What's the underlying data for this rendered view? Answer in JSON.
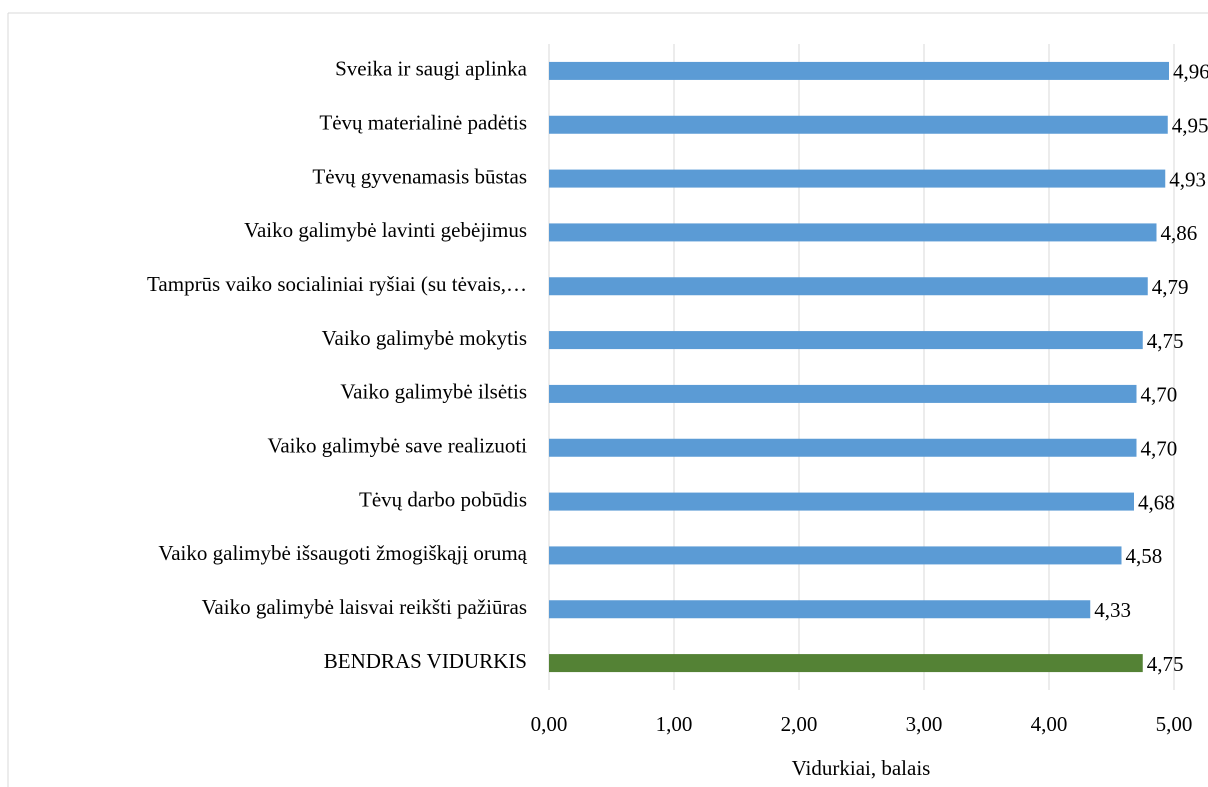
{
  "chart_data": {
    "type": "bar",
    "orientation": "horizontal",
    "x_label": "Vidurkiai, balais",
    "categories": [
      "Sveika ir saugi aplinka",
      "Tėvų materialinė padėtis",
      "Tėvų gyvenamasis būstas",
      "Vaiko galimybė lavinti gebėjimus",
      "Tamprūs vaiko socialiniai ryšiai (su tėvais,…",
      "Vaiko galimybė mokytis",
      "Vaiko galimybė ilsėtis",
      "Vaiko galimybė save realizuoti",
      "Tėvų darbo pobūdis",
      "Vaiko galimybė išsaugoti žmogiškąjį orumą",
      "Vaiko galimybė laisvai reikšti pažiūras",
      "BENDRAS VIDURKIS"
    ],
    "values": [
      4.96,
      4.95,
      4.93,
      4.86,
      4.79,
      4.75,
      4.7,
      4.7,
      4.68,
      4.58,
      4.33,
      4.75
    ],
    "value_labels": [
      "4,96",
      "4,95",
      "4,93",
      "4,86",
      "4,79",
      "4,75",
      "4,70",
      "4,70",
      "4,68",
      "4,58",
      "4,33",
      "4,75"
    ],
    "colors": [
      "#5b9bd5",
      "#5b9bd5",
      "#5b9bd5",
      "#5b9bd5",
      "#5b9bd5",
      "#5b9bd5",
      "#5b9bd5",
      "#5b9bd5",
      "#5b9bd5",
      "#5b9bd5",
      "#5b9bd5",
      "#548235"
    ],
    "xlim": [
      0,
      5
    ],
    "xticks": [
      {
        "value": 0,
        "label": "0,00"
      },
      {
        "value": 1,
        "label": "1,00"
      },
      {
        "value": 2,
        "label": "2,00"
      },
      {
        "value": 3,
        "label": "3,00"
      },
      {
        "value": 4,
        "label": "4,00"
      },
      {
        "value": 5,
        "label": "5,00"
      }
    ],
    "grid": true
  }
}
